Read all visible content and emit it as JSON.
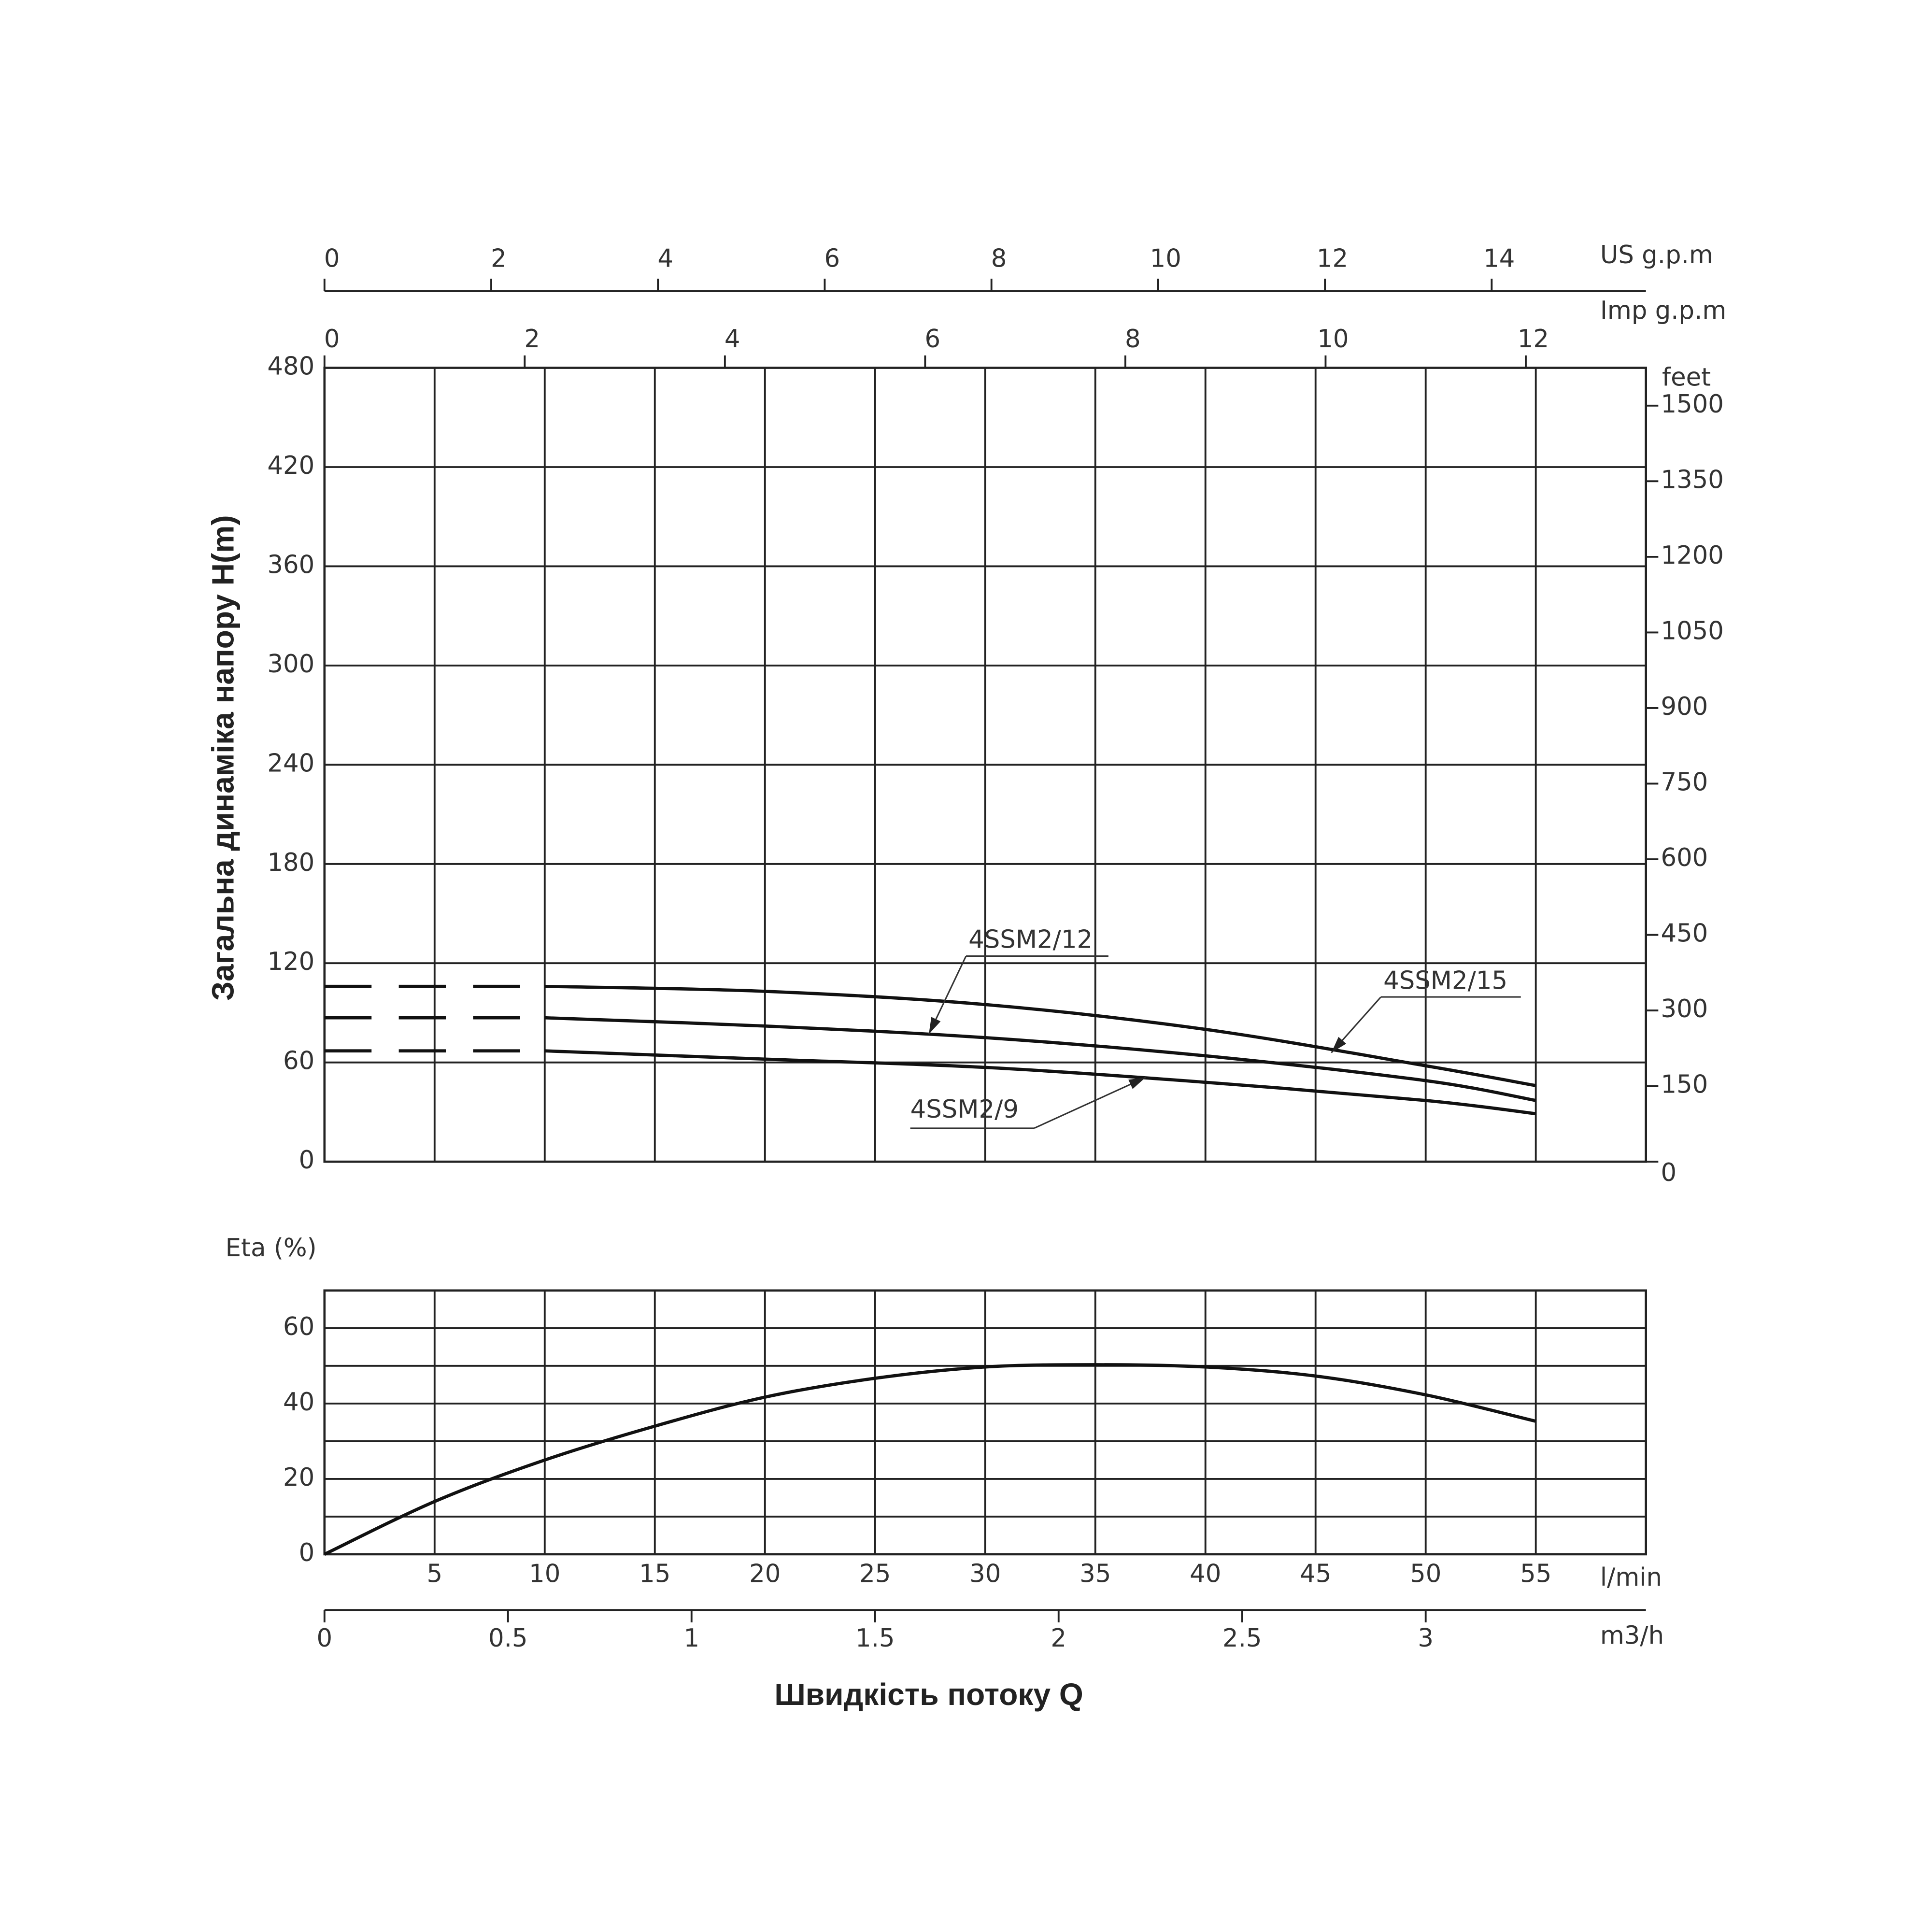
{
  "chart_data": [
    {
      "type": "line",
      "y_label": "Загальна динаміка напору H(m)",
      "ylim": [
        0,
        480
      ],
      "yticks": [
        0,
        60,
        120,
        180,
        240,
        300,
        360,
        420,
        480
      ],
      "y2_label": "feet",
      "y2lim": [
        0,
        1575
      ],
      "y2ticks": [
        0,
        150,
        300,
        450,
        600,
        750,
        900,
        1050,
        1200,
        1350,
        1500
      ],
      "xlim": [
        0,
        60
      ],
      "top_x_axes": [
        {
          "label": "US g.p.m",
          "xlim": [
            0,
            15.85
          ],
          "xticks": [
            0,
            2,
            4,
            6,
            8,
            10,
            12,
            14
          ]
        },
        {
          "label": "Imp g.p.m",
          "xlim": [
            0,
            13.2
          ],
          "xticks": [
            0,
            2,
            4,
            6,
            8,
            10,
            12
          ]
        }
      ],
      "grid": true,
      "dashed_upto_x": 10,
      "x": [
        0,
        10,
        20,
        30,
        40,
        50,
        55
      ],
      "series": [
        {
          "name": "4SSM2/15",
          "color": "#111111",
          "values": [
            106,
            106,
            103,
            95,
            80,
            58,
            46
          ]
        },
        {
          "name": "4SSM2/12",
          "color": "#111111",
          "values": [
            87,
            87,
            82,
            75,
            64,
            49,
            37
          ]
        },
        {
          "name": "4SSM2/9",
          "color": "#111111",
          "values": [
            67,
            67,
            62,
            57,
            48,
            37,
            29
          ]
        }
      ]
    },
    {
      "type": "line",
      "y_label": "Eta (%)",
      "x_label": "Швидкість потоку Q",
      "ylim": [
        0,
        70
      ],
      "yticks": [
        0,
        20,
        40,
        60
      ],
      "yminor": [
        10,
        30,
        50,
        70
      ],
      "xlim": [
        0,
        60
      ],
      "xticks": [
        5,
        10,
        15,
        20,
        25,
        30,
        35,
        40,
        45,
        50,
        55
      ],
      "x_unit": "l/min",
      "bottom_x_axes": [
        {
          "label": "m3/h",
          "xlim": [
            0,
            3.6
          ],
          "xticks": [
            0,
            0.5,
            1,
            1.5,
            2,
            2.5,
            3
          ]
        }
      ],
      "grid": true,
      "x": [
        0,
        5,
        10,
        15,
        20,
        25,
        30,
        35,
        40,
        45,
        50,
        55
      ],
      "series": [
        {
          "name": "Eta",
          "color": "#111111",
          "values": [
            0,
            14,
            25,
            34,
            41.7,
            46.7,
            49.7,
            50.3,
            49.7,
            47.3,
            42.3,
            35.3
          ]
        }
      ]
    }
  ]
}
